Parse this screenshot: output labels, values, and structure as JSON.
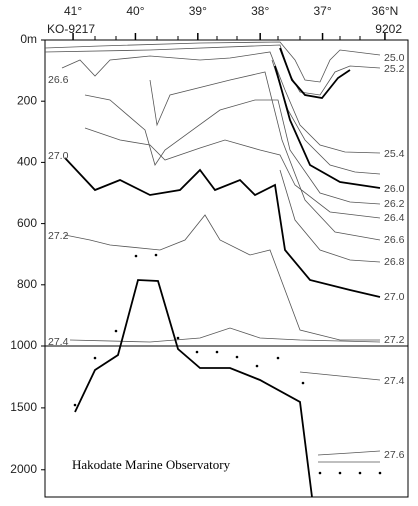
{
  "chart_data": [
    {
      "type": "contour",
      "xlim": [
        41.45,
        35.63
      ],
      "xticks": [
        {
          "value": 41,
          "label": "41°"
        },
        {
          "value": 40,
          "label": "40°"
        },
        {
          "value": 39,
          "label": "39°"
        },
        {
          "value": 38,
          "label": "38°"
        },
        {
          "value": 37,
          "label": "37°"
        },
        {
          "value": 36,
          "label": "36°N"
        }
      ],
      "ylim": [
        0,
        1000
      ],
      "yticks": [
        {
          "value": 0,
          "label": "0m"
        },
        200,
        400,
        600,
        800,
        1000
      ],
      "stations": [
        "KO-9217",
        "9202"
      ],
      "right_labels": [
        "25.0",
        "25.2",
        "25.4",
        "26.0",
        "26.2",
        "26.4",
        "26.6",
        "26.8",
        "27.0",
        "27.2"
      ],
      "left_labels": [
        "26.6",
        "27.0",
        "27.2",
        "27.4"
      ]
    },
    {
      "type": "contour",
      "xlim": [
        41.45,
        35.63
      ],
      "ylim": [
        1000,
        2220
      ],
      "yticks": [
        1500,
        2000
      ],
      "right_labels": [
        "27.4",
        "27.6"
      ],
      "annotation": "Hakodate Marine Observatory"
    }
  ]
}
